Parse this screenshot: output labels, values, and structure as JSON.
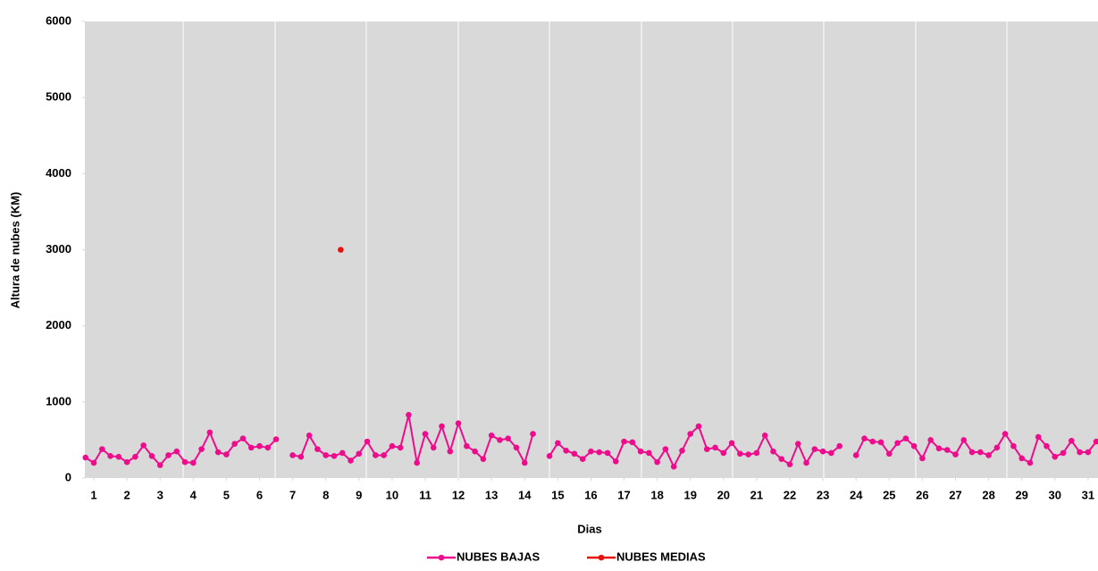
{
  "chart_data": {
    "type": "line",
    "xlabel": "Dias",
    "ylabel": "Altura de nubes (KM)",
    "xlim": [
      0.73,
      31.3
    ],
    "ylim": [
      0,
      6000
    ],
    "xticks": [
      1,
      2,
      3,
      4,
      5,
      6,
      7,
      8,
      9,
      10,
      11,
      12,
      13,
      14,
      15,
      16,
      17,
      18,
      19,
      20,
      21,
      22,
      23,
      24,
      25,
      26,
      27,
      28,
      29,
      30,
      31
    ],
    "yticks": [
      0,
      1000,
      2000,
      3000,
      4000,
      5000,
      6000
    ],
    "legend": "bottom",
    "series": [
      {
        "name": "NUBES BAJAS",
        "color": "#ec0c8c",
        "x": [
          0.75,
          1,
          1.25,
          1.5,
          1.75,
          2,
          2.25,
          2.5,
          2.75,
          3,
          3.25,
          3.5,
          3.75,
          4,
          4.25,
          4.5,
          4.75,
          5,
          5.25,
          5.5,
          5.75,
          6,
          6.25,
          6.5,
          6.75,
          7,
          7.25,
          7.5,
          7.75,
          8,
          8.25,
          8.5,
          8.75,
          9,
          9.25,
          9.5,
          9.75,
          10,
          10.25,
          10.5,
          10.75,
          11,
          11.25,
          11.5,
          11.75,
          12,
          12.25,
          12.5,
          12.75,
          13,
          13.25,
          13.5,
          13.75,
          14,
          14.25,
          14.5,
          14.75,
          15,
          15.25,
          15.5,
          15.75,
          16,
          16.25,
          16.5,
          16.75,
          17,
          17.25,
          17.5,
          17.75,
          18,
          18.25,
          18.5,
          18.75,
          19,
          19.25,
          19.5,
          19.75,
          20,
          20.25,
          20.5,
          20.75,
          21,
          21.25,
          21.5,
          21.75,
          22,
          22.25,
          22.5,
          22.75,
          23,
          23.25,
          23.5,
          23.75,
          24,
          24.25,
          24.5,
          24.75,
          25,
          25.25,
          25.5,
          25.75,
          26,
          26.25,
          26.5,
          26.75,
          27,
          27.25,
          27.5,
          27.75,
          28,
          28.25,
          28.5,
          28.75,
          29,
          29.25,
          29.5,
          29.75,
          30,
          30.25,
          30.5,
          30.75,
          31,
          31.25
        ],
        "values": [
          270,
          200,
          380,
          290,
          280,
          210,
          280,
          430,
          290,
          170,
          300,
          350,
          210,
          200,
          380,
          600,
          340,
          310,
          450,
          520,
          400,
          420,
          400,
          510,
          null,
          300,
          280,
          560,
          380,
          300,
          290,
          330,
          230,
          320,
          480,
          300,
          300,
          420,
          400,
          830,
          200,
          580,
          400,
          680,
          350,
          720,
          420,
          350,
          250,
          560,
          500,
          520,
          400,
          200,
          580,
          null,
          290,
          460,
          360,
          320,
          250,
          350,
          340,
          330,
          220,
          480,
          470,
          350,
          330,
          210,
          380,
          150,
          360,
          580,
          680,
          380,
          400,
          330,
          460,
          320,
          310,
          330,
          560,
          350,
          250,
          180,
          450,
          200,
          380,
          350,
          330,
          420,
          null,
          300,
          520,
          480,
          470,
          320,
          460,
          520,
          420,
          260,
          500,
          390,
          370,
          310,
          500,
          340,
          340,
          300,
          400,
          580,
          420,
          260,
          200,
          540,
          420,
          280,
          330,
          490,
          340,
          340,
          480
        ]
      },
      {
        "name": "NUBES MEDIAS",
        "color": "#e8120c",
        "x": [
          8.45
        ],
        "values": [
          3000
        ]
      }
    ]
  }
}
